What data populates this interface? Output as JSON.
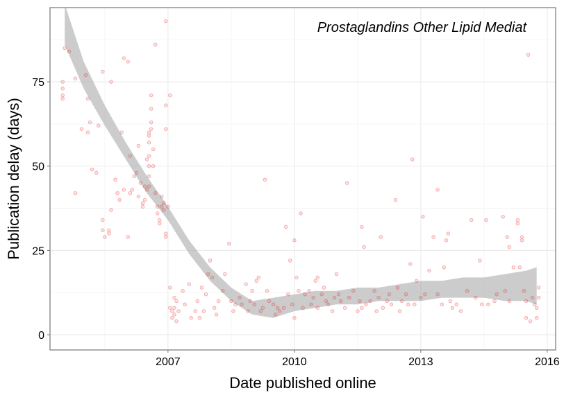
{
  "chart_data": {
    "type": "scatter",
    "title": "Prostaglandins Other Lipid Mediat",
    "xlabel": "Date published online",
    "ylabel": "Publication delay (days)",
    "xlim": [
      2004.2,
      2016.2
    ],
    "ylim": [
      -4.5,
      97
    ],
    "x_ticks": [
      2007,
      2010,
      2013,
      2016
    ],
    "x_tick_labels": [
      "2007",
      "2010",
      "2013",
      "2016"
    ],
    "y_ticks": [
      0,
      25,
      50,
      75
    ],
    "y_tick_labels": [
      "0",
      "25",
      "50",
      "75"
    ],
    "grid": true,
    "point_color": "#e8191a",
    "smooth_color": "#aaaaaa",
    "points": [
      [
        2004.55,
        85
      ],
      [
        2004.5,
        75
      ],
      [
        2004.5,
        73
      ],
      [
        2004.5,
        71
      ],
      [
        2004.5,
        70
      ],
      [
        2004.65,
        84
      ],
      [
        2004.8,
        76
      ],
      [
        2004.8,
        42
      ],
      [
        2004.95,
        61
      ],
      [
        2005.05,
        77
      ],
      [
        2005.1,
        70
      ],
      [
        2005.1,
        60
      ],
      [
        2005.15,
        63
      ],
      [
        2005.2,
        49
      ],
      [
        2005.3,
        48
      ],
      [
        2005.35,
        62
      ],
      [
        2005.45,
        78
      ],
      [
        2005.45,
        34
      ],
      [
        2005.45,
        31
      ],
      [
        2005.5,
        29
      ],
      [
        2005.6,
        31
      ],
      [
        2005.6,
        30
      ],
      [
        2005.65,
        37
      ],
      [
        2005.65,
        75
      ],
      [
        2005.75,
        46
      ],
      [
        2005.8,
        42
      ],
      [
        2005.85,
        40
      ],
      [
        2005.9,
        60
      ],
      [
        2005.95,
        43
      ],
      [
        2005.95,
        82
      ],
      [
        2006.05,
        81
      ],
      [
        2006.05,
        29
      ],
      [
        2006.1,
        53
      ],
      [
        2006.1,
        42
      ],
      [
        2006.15,
        43
      ],
      [
        2006.2,
        47
      ],
      [
        2006.25,
        48
      ],
      [
        2006.3,
        56
      ],
      [
        2006.3,
        41
      ],
      [
        2006.35,
        45
      ],
      [
        2006.4,
        39
      ],
      [
        2006.4,
        38
      ],
      [
        2006.45,
        40
      ],
      [
        2006.45,
        44
      ],
      [
        2006.5,
        43
      ],
      [
        2006.5,
        52
      ],
      [
        2006.55,
        57
      ],
      [
        2006.55,
        53
      ],
      [
        2006.55,
        50
      ],
      [
        2006.55,
        47
      ],
      [
        2006.55,
        44
      ],
      [
        2006.55,
        59
      ],
      [
        2006.55,
        60
      ],
      [
        2006.6,
        61
      ],
      [
        2006.6,
        63
      ],
      [
        2006.6,
        67
      ],
      [
        2006.6,
        71
      ],
      [
        2006.65,
        55
      ],
      [
        2006.65,
        50
      ],
      [
        2006.7,
        86
      ],
      [
        2006.7,
        42
      ],
      [
        2006.75,
        38
      ],
      [
        2006.75,
        36
      ],
      [
        2006.8,
        34
      ],
      [
        2006.8,
        33
      ],
      [
        2006.85,
        41
      ],
      [
        2006.85,
        38
      ],
      [
        2006.9,
        37
      ],
      [
        2006.9,
        39
      ],
      [
        2006.95,
        30
      ],
      [
        2006.95,
        29
      ],
      [
        2006.95,
        61
      ],
      [
        2006.95,
        68
      ],
      [
        2006.95,
        93
      ],
      [
        2007.0,
        38
      ],
      [
        2007.05,
        71
      ],
      [
        2007.05,
        14
      ],
      [
        2007.05,
        8
      ],
      [
        2007.1,
        7
      ],
      [
        2007.1,
        5
      ],
      [
        2007.15,
        11
      ],
      [
        2007.15,
        8
      ],
      [
        2007.15,
        6
      ],
      [
        2007.2,
        10
      ],
      [
        2007.2,
        4
      ],
      [
        2007.25,
        7
      ],
      [
        2007.35,
        13
      ],
      [
        2007.4,
        9
      ],
      [
        2007.5,
        15
      ],
      [
        2007.55,
        5
      ],
      [
        2007.65,
        7
      ],
      [
        2007.7,
        10
      ],
      [
        2007.75,
        5
      ],
      [
        2007.8,
        14
      ],
      [
        2007.85,
        7
      ],
      [
        2007.9,
        12
      ],
      [
        2007.95,
        18
      ],
      [
        2008.0,
        22
      ],
      [
        2008.05,
        17
      ],
      [
        2008.1,
        8
      ],
      [
        2008.15,
        6
      ],
      [
        2008.2,
        10
      ],
      [
        2008.3,
        13
      ],
      [
        2008.35,
        18
      ],
      [
        2008.45,
        27
      ],
      [
        2008.5,
        10
      ],
      [
        2008.55,
        7
      ],
      [
        2008.6,
        9
      ],
      [
        2008.7,
        11
      ],
      [
        2008.75,
        9
      ],
      [
        2008.85,
        15
      ],
      [
        2008.9,
        7
      ],
      [
        2008.95,
        10
      ],
      [
        2009.0,
        13
      ],
      [
        2009.05,
        9
      ],
      [
        2009.1,
        16
      ],
      [
        2009.15,
        17
      ],
      [
        2009.2,
        7
      ],
      [
        2009.25,
        8
      ],
      [
        2009.3,
        46
      ],
      [
        2009.35,
        13
      ],
      [
        2009.4,
        10
      ],
      [
        2009.5,
        9
      ],
      [
        2009.55,
        6
      ],
      [
        2009.6,
        8
      ],
      [
        2009.65,
        7
      ],
      [
        2009.75,
        8
      ],
      [
        2009.8,
        32
      ],
      [
        2009.85,
        12
      ],
      [
        2009.9,
        22
      ],
      [
        2009.95,
        9
      ],
      [
        2010.0,
        5
      ],
      [
        2010.0,
        28
      ],
      [
        2010.05,
        17
      ],
      [
        2010.1,
        13
      ],
      [
        2010.15,
        36
      ],
      [
        2010.2,
        8
      ],
      [
        2010.25,
        12
      ],
      [
        2010.35,
        13
      ],
      [
        2010.4,
        9
      ],
      [
        2010.45,
        11
      ],
      [
        2010.5,
        16
      ],
      [
        2010.55,
        17
      ],
      [
        2010.55,
        8
      ],
      [
        2010.65,
        12
      ],
      [
        2010.7,
        14
      ],
      [
        2010.75,
        10
      ],
      [
        2010.8,
        9
      ],
      [
        2010.9,
        7
      ],
      [
        2010.95,
        11
      ],
      [
        2011.0,
        18
      ],
      [
        2011.05,
        12
      ],
      [
        2011.1,
        10
      ],
      [
        2011.2,
        8
      ],
      [
        2011.25,
        45
      ],
      [
        2011.3,
        11
      ],
      [
        2011.4,
        13
      ],
      [
        2011.5,
        7
      ],
      [
        2011.55,
        10
      ],
      [
        2011.6,
        8
      ],
      [
        2011.6,
        32
      ],
      [
        2011.65,
        26
      ],
      [
        2011.7,
        9
      ],
      [
        2011.8,
        10
      ],
      [
        2011.9,
        13
      ],
      [
        2011.95,
        7
      ],
      [
        2012.0,
        11
      ],
      [
        2012.05,
        29
      ],
      [
        2012.1,
        8
      ],
      [
        2012.2,
        10
      ],
      [
        2012.25,
        12
      ],
      [
        2012.3,
        9
      ],
      [
        2012.4,
        40
      ],
      [
        2012.45,
        14
      ],
      [
        2012.5,
        7
      ],
      [
        2012.55,
        10
      ],
      [
        2012.65,
        12
      ],
      [
        2012.7,
        9
      ],
      [
        2012.75,
        21
      ],
      [
        2012.8,
        52
      ],
      [
        2012.85,
        9
      ],
      [
        2012.9,
        16
      ],
      [
        2013.0,
        11
      ],
      [
        2013.05,
        35
      ],
      [
        2013.1,
        12
      ],
      [
        2013.2,
        19
      ],
      [
        2013.3,
        29
      ],
      [
        2013.4,
        12
      ],
      [
        2013.4,
        43
      ],
      [
        2013.5,
        9
      ],
      [
        2013.55,
        20
      ],
      [
        2013.6,
        28
      ],
      [
        2013.65,
        30
      ],
      [
        2013.7,
        10
      ],
      [
        2013.75,
        8
      ],
      [
        2013.85,
        9
      ],
      [
        2013.95,
        7
      ],
      [
        2014.1,
        13
      ],
      [
        2014.2,
        34
      ],
      [
        2014.3,
        11
      ],
      [
        2014.4,
        22
      ],
      [
        2014.45,
        9
      ],
      [
        2014.55,
        34
      ],
      [
        2014.6,
        9
      ],
      [
        2014.75,
        10
      ],
      [
        2014.8,
        12
      ],
      [
        2014.95,
        35
      ],
      [
        2015.0,
        13
      ],
      [
        2015.05,
        29
      ],
      [
        2015.1,
        10
      ],
      [
        2015.1,
        26
      ],
      [
        2015.2,
        20
      ],
      [
        2015.3,
        33
      ],
      [
        2015.3,
        34
      ],
      [
        2015.35,
        20
      ],
      [
        2015.4,
        28
      ],
      [
        2015.4,
        29
      ],
      [
        2015.45,
        13
      ],
      [
        2015.5,
        10
      ],
      [
        2015.5,
        5
      ],
      [
        2015.55,
        83
      ],
      [
        2015.6,
        4
      ],
      [
        2015.65,
        11
      ],
      [
        2015.7,
        9
      ],
      [
        2015.75,
        5
      ],
      [
        2015.75,
        8
      ],
      [
        2015.8,
        11
      ],
      [
        2015.8,
        14
      ]
    ],
    "smooth_band": [
      {
        "x": 2004.55,
        "lo": 86,
        "hi": 98
      },
      {
        "x": 2005.0,
        "lo": 73,
        "hi": 81
      },
      {
        "x": 2005.5,
        "lo": 62,
        "hi": 68
      },
      {
        "x": 2006.0,
        "lo": 52,
        "hi": 57
      },
      {
        "x": 2006.5,
        "lo": 42,
        "hi": 47
      },
      {
        "x": 2007.0,
        "lo": 34,
        "hi": 38
      },
      {
        "x": 2007.5,
        "lo": 24,
        "hi": 28
      },
      {
        "x": 2008.0,
        "lo": 16,
        "hi": 20
      },
      {
        "x": 2008.5,
        "lo": 10,
        "hi": 14
      },
      {
        "x": 2009.0,
        "lo": 6,
        "hi": 10
      },
      {
        "x": 2009.5,
        "lo": 5,
        "hi": 11
      },
      {
        "x": 2010.0,
        "lo": 7,
        "hi": 12
      },
      {
        "x": 2010.5,
        "lo": 8,
        "hi": 13
      },
      {
        "x": 2011.0,
        "lo": 9,
        "hi": 13
      },
      {
        "x": 2011.5,
        "lo": 9,
        "hi": 14
      },
      {
        "x": 2012.0,
        "lo": 10,
        "hi": 14
      },
      {
        "x": 2012.5,
        "lo": 10,
        "hi": 15
      },
      {
        "x": 2013.0,
        "lo": 10,
        "hi": 16
      },
      {
        "x": 2013.5,
        "lo": 11,
        "hi": 16
      },
      {
        "x": 2014.0,
        "lo": 11,
        "hi": 17
      },
      {
        "x": 2014.5,
        "lo": 11,
        "hi": 17
      },
      {
        "x": 2015.0,
        "lo": 10,
        "hi": 18
      },
      {
        "x": 2015.5,
        "lo": 10,
        "hi": 19
      },
      {
        "x": 2015.75,
        "lo": 9,
        "hi": 20
      }
    ]
  }
}
